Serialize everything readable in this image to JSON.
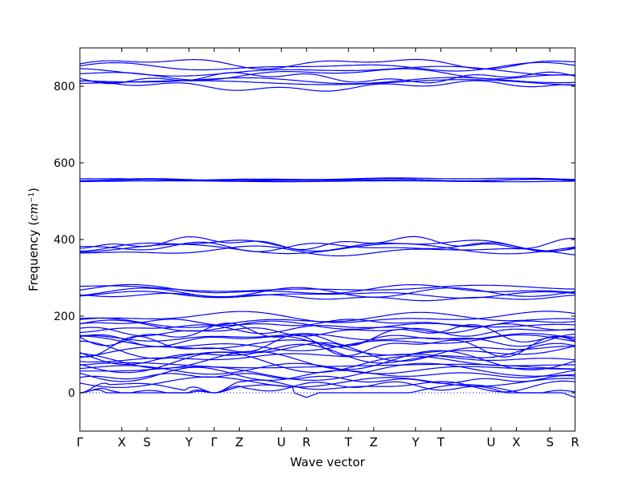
{
  "chart_data": {
    "type": "line",
    "title": "",
    "xlabel": "Wave vector",
    "ylabel_prefix": "Frequency (",
    "ylabel_math": "cm",
    "ylabel_exp": "−1",
    "ylabel_suffix": ")",
    "ylim": [
      -100,
      900
    ],
    "yticks": [
      0,
      200,
      400,
      600,
      800
    ],
    "grid": false,
    "legend": "none",
    "line_color": "#0000ff",
    "zero_line_color": "#0000ff",
    "kpoints": [
      {
        "label": "Γ",
        "x": 0.0
      },
      {
        "label": "X",
        "x": 0.5
      },
      {
        "label": "S",
        "x": 0.8
      },
      {
        "label": "Y",
        "x": 1.3
      },
      {
        "label": "Γ",
        "x": 1.6
      },
      {
        "label": "Z",
        "x": 1.9
      },
      {
        "label": "U",
        "x": 2.4
      },
      {
        "label": "R",
        "x": 2.7
      },
      {
        "label": "T",
        "x": 3.2
      },
      {
        "label": "Z",
        "x": 3.5
      },
      {
        "label": "Y",
        "x": 4.0
      },
      {
        "label": "T",
        "x": 4.3
      },
      {
        "label": "U",
        "x": 4.9
      },
      {
        "label": "X",
        "x": 5.2
      },
      {
        "label": "S",
        "x": 5.6
      },
      {
        "label": "R",
        "x": 5.9
      }
    ],
    "xlim": [
      0.0,
      5.9
    ],
    "band_groups": [
      {
        "name": "acoustic-low",
        "base": [
          3,
          10,
          18,
          28,
          38,
          48
        ]
      },
      {
        "name": "optical-mid",
        "base": [
          55,
          62,
          70,
          78,
          85,
          92,
          100,
          108,
          115,
          122,
          130,
          138,
          145,
          152,
          160,
          168,
          175,
          182,
          190,
          196
        ]
      },
      {
        "name": "group-260",
        "base": [
          250,
          256,
          262,
          268,
          272
        ]
      },
      {
        "name": "group-380",
        "base": [
          370,
          376,
          381,
          386,
          391
        ]
      },
      {
        "name": "group-555",
        "base": [
          552,
          554,
          556,
          558
        ]
      },
      {
        "name": "group-830",
        "base": [
          800,
          810,
          815,
          822,
          832,
          840,
          850,
          860
        ]
      }
    ]
  }
}
